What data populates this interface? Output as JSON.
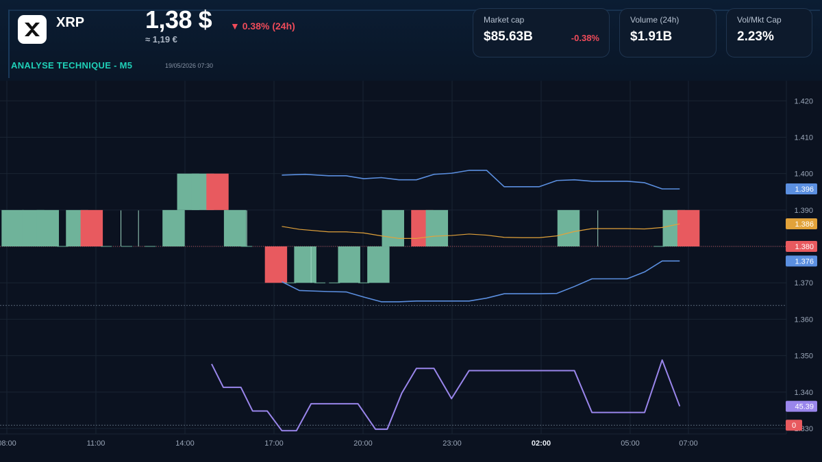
{
  "coin": {
    "symbol": "XRP",
    "price": "1,38 $",
    "price_eur": "≈ 1,19 €",
    "change": "▼ 0.38% (24h)"
  },
  "analysis": {
    "title": "ANALYSE TECHNIQUE - M5",
    "date": "19/05/2026 07:30"
  },
  "stats": [
    {
      "label": "Market cap",
      "value": "$85.63B",
      "change": "-0.38%"
    },
    {
      "label": "Volume (24h)",
      "value": "$1.91B"
    },
    {
      "label": "Vol/Mkt Cap",
      "value": "2.23%"
    }
  ],
  "colors": {
    "up": "#6fb39a",
    "down": "#e85a5f",
    "band": "#5b8fe0",
    "mid": "#e2a23a",
    "rsi": "#9a86ec",
    "accent": "#1fd0b8"
  },
  "chart_data": {
    "type": "candlestick",
    "x_ticks": [
      "08:00",
      "11:00",
      "14:00",
      "17:00",
      "20:00",
      "23:00",
      "02:00",
      "05:00",
      "07:00"
    ],
    "y_ticks": [
      "1.420",
      "1.410",
      "1.400",
      "1.390",
      "1.380",
      "1.370",
      "1.360",
      "1.350",
      "1.340",
      "1.330"
    ],
    "ylim": [
      1.3285,
      1.4255
    ],
    "last_price": "1.380",
    "candles": [
      {
        "x": 0.2,
        "open": 1.38,
        "close": 1.39
      },
      {
        "x": 0.9,
        "open": 1.38,
        "close": 1.39
      },
      {
        "x": 1.4,
        "open": 1.38,
        "close": 1.39
      },
      {
        "x": 1.9,
        "open": 1.38,
        "close": 1.38
      },
      {
        "x": 2.4,
        "open": 1.38,
        "close": 1.39
      },
      {
        "x": 2.9,
        "open": 1.39,
        "close": 1.38
      },
      {
        "x": 3.4,
        "open": 1.38,
        "close": 1.38
      },
      {
        "x": 4.1,
        "open": 1.38,
        "close": 1.38
      },
      {
        "x": 4.9,
        "open": 1.38,
        "close": 1.38
      },
      {
        "x": 5.7,
        "open": 1.38,
        "close": 1.39
      },
      {
        "x": 6.2,
        "open": 1.39,
        "close": 1.4
      },
      {
        "x": 6.7,
        "open": 1.39,
        "close": 1.4
      },
      {
        "x": 7.2,
        "open": 1.4,
        "close": 1.39
      },
      {
        "x": 7.8,
        "open": 1.38,
        "close": 1.39
      },
      {
        "x": 8.2,
        "open": 1.38,
        "close": 1.38
      },
      {
        "x": 9.2,
        "open": 1.38,
        "close": 1.37
      },
      {
        "x": 9.7,
        "open": 1.37,
        "close": 1.37
      },
      {
        "x": 10.2,
        "open": 1.37,
        "close": 1.38
      },
      {
        "x": 10.7,
        "open": 1.37,
        "close": 1.37
      },
      {
        "x": 11.2,
        "open": 1.37,
        "close": 1.37
      },
      {
        "x": 11.7,
        "open": 1.37,
        "close": 1.38
      },
      {
        "x": 12.2,
        "open": 1.37,
        "close": 1.37
      },
      {
        "x": 12.7,
        "open": 1.37,
        "close": 1.38
      },
      {
        "x": 13.2,
        "open": 1.38,
        "close": 1.39
      },
      {
        "x": 14.2,
        "open": 1.39,
        "close": 1.38
      },
      {
        "x": 14.7,
        "open": 1.38,
        "close": 1.39
      },
      {
        "x": 19.2,
        "open": 1.38,
        "close": 1.39
      },
      {
        "x": 22.3,
        "open": 1.38,
        "close": 1.38
      },
      {
        "x": 22.8,
        "open": 1.38,
        "close": 1.39
      },
      {
        "x": 23.3,
        "open": 1.39,
        "close": 1.38
      }
    ],
    "bollinger_upper": {
      "x": [
        9.4,
        10.2,
        11,
        11.6,
        12.2,
        12.8,
        13.4,
        14,
        14.6,
        15.2,
        15.8,
        16.4,
        17,
        17.6,
        18.2,
        18.8,
        19.4,
        20,
        20.6,
        21.2,
        21.8,
        22.4,
        23
      ],
      "y": [
        1.3996,
        1.3998,
        1.3994,
        1.3994,
        1.3986,
        1.3989,
        1.3983,
        1.3983,
        1.3998,
        1.4001,
        1.4009,
        1.4009,
        1.3964,
        1.3964,
        1.3964,
        1.3981,
        1.3983,
        1.3979,
        1.3979,
        1.3979,
        1.3975,
        1.3958,
        1.3958
      ]
    },
    "bollinger_mid": {
      "x": [
        9.4,
        10,
        11,
        11.6,
        12.2,
        12.8,
        13.4,
        14,
        14.6,
        15.2,
        15.8,
        16.4,
        17,
        17.6,
        18.2,
        18.8,
        19.4,
        20,
        20.6,
        21.2,
        21.8,
        22.4,
        23
      ],
      "y": [
        1.3855,
        1.3847,
        1.384,
        1.384,
        1.3837,
        1.3829,
        1.3822,
        1.3822,
        1.3828,
        1.383,
        1.3834,
        1.3831,
        1.3825,
        1.3824,
        1.3824,
        1.3829,
        1.3841,
        1.3849,
        1.3849,
        1.3849,
        1.3848,
        1.3852,
        1.3862
      ]
    },
    "bollinger_lower": {
      "x": [
        9.4,
        10,
        11,
        11.6,
        12.2,
        12.8,
        13.4,
        14,
        14.6,
        15.2,
        15.8,
        16.4,
        17,
        17.6,
        18.2,
        18.8,
        19.4,
        20,
        20.6,
        21.2,
        21.8,
        22.4,
        23
      ],
      "y": [
        1.3703,
        1.3679,
        1.3676,
        1.3675,
        1.3661,
        1.3648,
        1.3648,
        1.365,
        1.365,
        1.365,
        1.365,
        1.3658,
        1.367,
        1.367,
        1.367,
        1.3671,
        1.369,
        1.3711,
        1.3711,
        1.3711,
        1.373,
        1.376,
        1.376
      ]
    },
    "rsi": {
      "x": [
        7.0,
        7.4,
        8.0,
        8.4,
        8.9,
        9.4,
        9.9,
        10.4,
        11,
        11.6,
        12,
        12.6,
        13,
        13.5,
        14,
        14.6,
        15.2,
        15.8,
        16.4,
        17,
        17.6,
        18.2,
        18.8,
        19.4,
        20,
        20.6,
        21.2,
        21.8,
        22.4,
        23
      ],
      "y": [
        1.3477,
        1.3413,
        1.3413,
        1.3348,
        1.3348,
        1.3294,
        1.3294,
        1.3368,
        1.3368,
        1.3368,
        1.3368,
        1.3298,
        1.3298,
        1.3397,
        1.3465,
        1.3465,
        1.3382,
        1.3459,
        1.3459,
        1.3459,
        1.3459,
        1.3459,
        1.3459,
        1.3459,
        1.3344,
        1.3344,
        1.3344,
        1.3344,
        1.3488,
        1.3361
      ]
    },
    "labels": {
      "upper": "1.396",
      "mid": "1.386",
      "last": "1.380",
      "lower": "1.376",
      "rsi": "45.39",
      "zero": "0"
    }
  }
}
